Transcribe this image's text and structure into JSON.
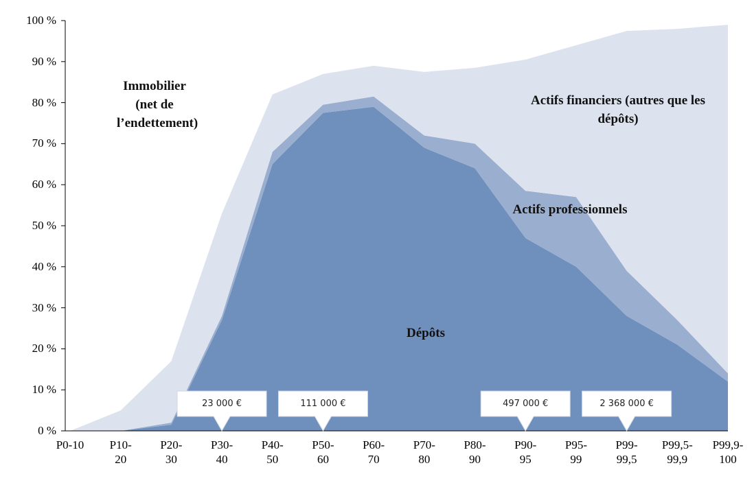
{
  "chart_data": {
    "type": "stacked_area",
    "categories": [
      "P0-10",
      "P10-20",
      "P20-30",
      "P30-40",
      "P40-50",
      "P50-60",
      "P60-70",
      "P70-80",
      "P80-90",
      "P90-95",
      "P95-99",
      "P99-99,5",
      "P99,5-99,9",
      "P99,9-100"
    ],
    "series": [
      {
        "name": "Immobilier (net de l’endettement)",
        "color": "#6f8fbd",
        "values": [
          0,
          0,
          1.5,
          27,
          65,
          77.5,
          79,
          69,
          64,
          47,
          40,
          28,
          21,
          12
        ]
      },
      {
        "name": "Actifs professionnels",
        "color": "#9aafd0",
        "values": [
          0,
          0,
          0.5,
          1,
          3,
          2,
          2.5,
          3,
          6,
          11.5,
          17,
          11,
          6,
          2
        ]
      },
      {
        "name": "Actifs financiers (autres que les dépôts)",
        "color": "#dde3ee",
        "values": [
          0,
          5,
          15,
          25,
          14,
          7.5,
          7.5,
          15.5,
          18.5,
          32,
          37,
          58.5,
          71,
          85
        ]
      },
      {
        "name": "Dépôts",
        "color": "#ffffff",
        "values": [
          100,
          95,
          83,
          47,
          18,
          13,
          11,
          12.5,
          11.5,
          9.5,
          6,
          2.5,
          2,
          1
        ]
      }
    ],
    "ylim": [
      0,
      100
    ],
    "yticks": [
      {
        "value": 0,
        "label": "0 %"
      },
      {
        "value": 10,
        "label": "10 %"
      },
      {
        "value": 20,
        "label": "20 %"
      },
      {
        "value": 30,
        "label": "30 %"
      },
      {
        "value": 40,
        "label": "40 %"
      },
      {
        "value": 50,
        "label": "50 %"
      },
      {
        "value": 60,
        "label": "60 %"
      },
      {
        "value": 70,
        "label": "70 %"
      },
      {
        "value": 80,
        "label": "80 %"
      },
      {
        "value": 90,
        "label": "90 %"
      },
      {
        "value": 100,
        "label": "100 %"
      }
    ],
    "annotations": [
      {
        "text": "23 000 €",
        "category": "P30-40"
      },
      {
        "text": "111 000 €",
        "category": "P50-60"
      },
      {
        "text": "497 000 €",
        "category": "P90-95"
      },
      {
        "text": "2 368 000 €",
        "category": "P99-99,5"
      }
    ]
  }
}
